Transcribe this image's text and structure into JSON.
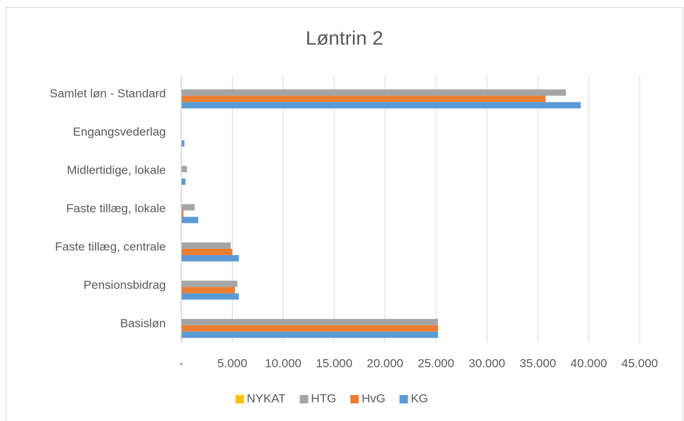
{
  "chart_data": {
    "type": "barh",
    "title": "Løntrin 2",
    "categories": [
      "Basisløn",
      "Pensionsbidrag",
      "Faste tillæg, centrale",
      "Faste tillæg, lokale",
      "Midlertidige, lokale",
      "Engangsvederlag",
      "Samlet løn - Standard"
    ],
    "series": [
      {
        "name": "NYKAT",
        "color": "#ffc000",
        "values": [
          0,
          0,
          0,
          0,
          0,
          0,
          0
        ]
      },
      {
        "name": "HTG",
        "color": "#a5a5a5",
        "values": [
          25200,
          5500,
          4850,
          1300,
          550,
          0,
          37750
        ]
      },
      {
        "name": "HvG",
        "color": "#ed7d31",
        "values": [
          25200,
          5250,
          5000,
          200,
          0,
          0,
          35750
        ]
      },
      {
        "name": "KG",
        "color": "#5b9bd5",
        "values": [
          25200,
          5650,
          5650,
          1650,
          400,
          300,
          39200
        ]
      }
    ],
    "xlim": [
      0,
      45000
    ],
    "xticks": [
      {
        "value": 0,
        "label": "-"
      },
      {
        "value": 5000,
        "label": "5.000"
      },
      {
        "value": 10000,
        "label": "10.000"
      },
      {
        "value": 15000,
        "label": "15.000"
      },
      {
        "value": 20000,
        "label": "20.000"
      },
      {
        "value": 25000,
        "label": "25.000"
      },
      {
        "value": 30000,
        "label": "30.000"
      },
      {
        "value": 35000,
        "label": "35.000"
      },
      {
        "value": 40000,
        "label": "40.000"
      },
      {
        "value": 45000,
        "label": "45.000"
      }
    ],
    "grid": true,
    "legend": "bottom"
  }
}
